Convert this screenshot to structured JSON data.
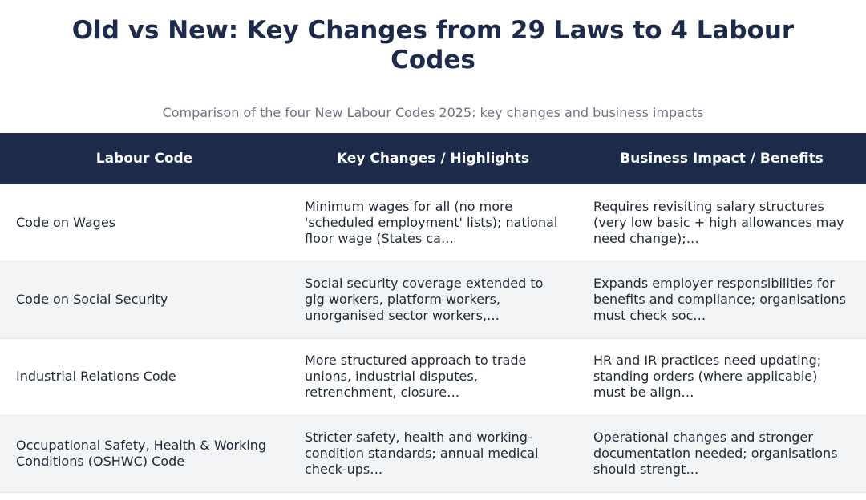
{
  "title_line1": "Old vs New: Key Changes from 29 Laws to 4 Labour",
  "title_line2": "Codes",
  "subtitle": "Comparison of the four New Labour Codes 2025: key changes and business impacts",
  "table": {
    "headers": [
      "Labour Code",
      "Key Changes / Highlights",
      "Business Impact / Benefits"
    ],
    "rows": [
      {
        "code": "Code on Wages",
        "changes": "Minimum wages for all (no more 'scheduled employment' lists); national floor wage (States ca…",
        "impact": "Requires revisiting salary structures (very low basic + high allowances may need change);…"
      },
      {
        "code": "Code on Social Security",
        "changes": "Social security coverage extended to gig workers, platform workers, unorganised sector workers,…",
        "impact": "Expands employer responsibilities for benefits and compliance; organisations must check soc…"
      },
      {
        "code": "Industrial Relations Code",
        "changes": "More structured approach to trade unions, industrial disputes, retrenchment, closure…",
        "impact": "HR and IR practices need updating; standing orders (where applicable) must be align…"
      },
      {
        "code": "Occupational Safety, Health & Working Conditions (OSHWC) Code",
        "changes": "Stricter safety, health and working-condition standards; annual medical check-ups…",
        "impact": "Operational changes and stronger documentation needed; organisations should strengt…"
      }
    ]
  }
}
